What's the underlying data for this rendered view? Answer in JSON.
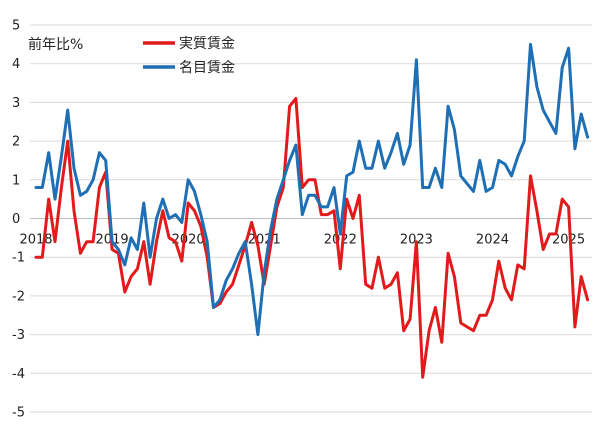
{
  "chart_data": {
    "type": "line",
    "title": "",
    "xlabel": "",
    "ylabel": "前年比%",
    "ylim": [
      -5,
      5
    ],
    "y_ticks": [
      "5",
      "4",
      "3",
      "2",
      "1",
      "0",
      "-1",
      "-2",
      "-3",
      "-4",
      "-5"
    ],
    "x_tick_labels": [
      "2018",
      "2019",
      "2020",
      "2021",
      "2022",
      "2023",
      "2024",
      "2025"
    ],
    "grid": "horizontal",
    "legend_position": "top-center",
    "x_start": "2018-01",
    "x_end": "2025-05",
    "series": [
      {
        "name": "実質賃金",
        "color": "#e31a1c",
        "values": [
          -1.0,
          -1.0,
          0.5,
          -0.6,
          0.8,
          2.0,
          0.2,
          -0.9,
          -0.6,
          -0.6,
          0.8,
          1.2,
          -0.8,
          -0.9,
          -1.9,
          -1.5,
          -1.3,
          -0.6,
          -1.7,
          -0.6,
          0.2,
          -0.5,
          -0.6,
          -1.1,
          0.4,
          0.2,
          -0.2,
          -1.0,
          -2.3,
          -2.2,
          -1.9,
          -1.7,
          -1.2,
          -0.7,
          -0.1,
          -0.7,
          -1.7,
          -0.7,
          0.3,
          0.8,
          2.9,
          3.1,
          0.8,
          1.0,
          1.0,
          0.1,
          0.1,
          0.2,
          -1.3,
          0.5,
          0.0,
          0.6,
          -1.7,
          -1.8,
          -1.0,
          -1.8,
          -1.7,
          -1.4,
          -2.9,
          -2.6,
          -0.6,
          -4.1,
          -2.9,
          -2.3,
          -3.2,
          -0.9,
          -1.5,
          -2.7,
          -2.8,
          -2.9,
          -2.5,
          -2.5,
          -2.1,
          -1.1,
          -1.8,
          -2.1,
          -1.2,
          -1.3,
          1.1,
          0.2,
          -0.8,
          -0.4,
          -0.4,
          0.5,
          0.3,
          -2.8,
          -1.5,
          -2.1
        ]
      },
      {
        "name": "名目賃金",
        "color": "#1f6fb5",
        "values": [
          0.8,
          0.8,
          1.7,
          0.5,
          1.6,
          2.8,
          1.3,
          0.6,
          0.7,
          1.0,
          1.7,
          1.5,
          -0.6,
          -0.8,
          -1.2,
          -0.5,
          -0.8,
          0.4,
          -1.0,
          0.0,
          0.5,
          0.0,
          0.1,
          -0.1,
          1.0,
          0.7,
          0.1,
          -0.6,
          -2.3,
          -2.1,
          -1.6,
          -1.3,
          -0.9,
          -0.6,
          -1.7,
          -3.0,
          -1.4,
          -0.3,
          0.5,
          1.0,
          1.5,
          1.9,
          0.1,
          0.6,
          0.6,
          0.3,
          0.3,
          0.8,
          -0.4,
          1.1,
          1.2,
          2.0,
          1.3,
          1.3,
          2.0,
          1.3,
          1.7,
          2.2,
          1.4,
          1.9,
          4.1,
          0.8,
          0.8,
          1.3,
          0.8,
          2.9,
          2.3,
          1.1,
          0.9,
          0.7,
          1.5,
          0.7,
          0.8,
          1.5,
          1.4,
          1.1,
          1.6,
          2.0,
          4.5,
          3.4,
          2.8,
          2.5,
          2.2,
          3.9,
          4.4,
          1.8,
          2.7,
          2.1
        ]
      }
    ]
  }
}
